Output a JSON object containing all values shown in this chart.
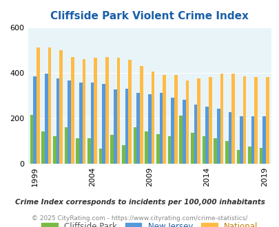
{
  "title": "Cliffside Park Violent Crime Index",
  "years": [
    1999,
    2000,
    2001,
    2002,
    2003,
    2004,
    2005,
    2006,
    2007,
    2008,
    2009,
    2010,
    2011,
    2012,
    2013,
    2014,
    2015,
    2016,
    2017,
    2018,
    2019
  ],
  "cliffside_park": [
    215,
    140,
    120,
    160,
    110,
    110,
    65,
    125,
    80,
    160,
    140,
    130,
    120,
    210,
    135,
    120,
    110,
    100,
    60,
    75,
    70
  ],
  "new_jersey": [
    385,
    395,
    375,
    365,
    355,
    355,
    350,
    325,
    330,
    310,
    305,
    310,
    290,
    280,
    260,
    250,
    240,
    225,
    208,
    208,
    208
  ],
  "national": [
    510,
    510,
    500,
    470,
    460,
    465,
    470,
    465,
    455,
    430,
    405,
    390,
    390,
    365,
    375,
    380,
    395,
    395,
    385,
    380,
    380
  ],
  "xtick_years": [
    1999,
    2004,
    2009,
    2014,
    2019
  ],
  "ylim": [
    0,
    600
  ],
  "yticks": [
    0,
    200,
    400,
    600
  ],
  "color_cliffside": "#77bb44",
  "color_nj": "#5599dd",
  "color_national": "#ffbb44",
  "bg_color": "#e8f4f8",
  "subtitle": "Crime Index corresponds to incidents per 100,000 inhabitants",
  "footer": "© 2025 CityRating.com - https://www.cityrating.com/crime-statistics/",
  "legend_labels": [
    "Cliffside Park",
    "New Jersey",
    "National"
  ],
  "legend_text_colors": [
    "#555555",
    "#1a5fa8",
    "#c47a00"
  ],
  "title_color": "#1a5fa8",
  "title_fontsize": 11,
  "bar_width": 0.28
}
